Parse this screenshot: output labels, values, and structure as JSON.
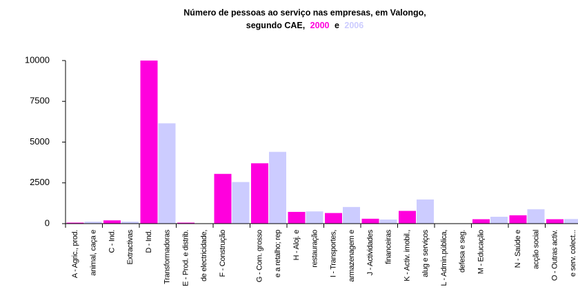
{
  "chart_data": {
    "type": "bar",
    "title_lines": [
      "Número de pessoas ao serviço nas empresas, em Valongo,",
      "segundo CAE,"
    ],
    "title_conjunction": "e",
    "categories": [
      [
        "A - Agric., prod.",
        "animal, caça e"
      ],
      [
        "C - Ind.",
        "Extractivas"
      ],
      [
        "D - Ind.",
        "Transformadoras"
      ],
      [
        "E - Prod. e distrib.",
        "de electricidade,"
      ],
      [
        "F - Construção"
      ],
      [
        "G - Com. grosso",
        "e a retalho; rep"
      ],
      [
        "H - Aloj. e",
        "restauração"
      ],
      [
        "I - Transportes,",
        "armazenagem e"
      ],
      [
        "J - Actividades",
        "financeiras"
      ],
      [
        "K - Activ. imobil.,",
        "alug e serviços"
      ],
      [
        "L - Admin.pública,",
        "defesa e seg."
      ],
      [
        "M - Educação"
      ],
      [
        "N - Saúde e",
        "acção social"
      ],
      [
        "O - Outras activ.",
        "e serv. colect..."
      ]
    ],
    "series": [
      {
        "name": "2000",
        "color": "#ff00dd",
        "values": [
          60,
          200,
          10000,
          60,
          3050,
          3700,
          720,
          650,
          300,
          780,
          0,
          270,
          510,
          270
        ]
      },
      {
        "name": "2006",
        "color": "#ccccff",
        "values": [
          120,
          120,
          6150,
          20,
          2550,
          4400,
          750,
          1020,
          250,
          1480,
          20,
          420,
          880,
          280
        ]
      }
    ],
    "ylim": [
      0,
      10000
    ],
    "yticks": [
      0,
      2500,
      5000,
      7500,
      10000
    ]
  }
}
